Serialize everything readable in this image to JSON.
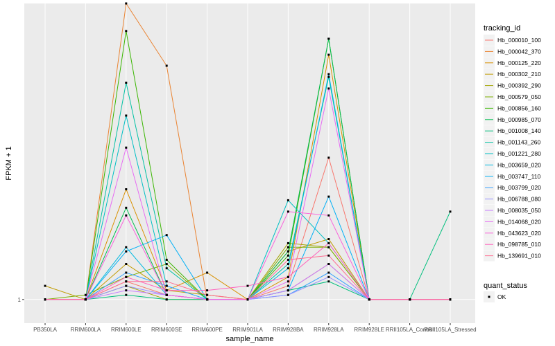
{
  "chart_data": {
    "type": "line",
    "title": "",
    "xlabel": "sample_name",
    "ylabel": "FPKM + 1",
    "categories": [
      "PB350LA",
      "RRIM600LA",
      "RRIM600LE",
      "RRIM600SE",
      "RRIM600PE",
      "RRIM901LA",
      "RRIM928BA",
      "RRIM928LA",
      "RRIM928LE",
      "RRII105LA_Control",
      "RRII105LA_Stressed"
    ],
    "y_tick_labels": [
      "1"
    ],
    "y_scale": "log",
    "ylim": [
      0.95,
      1.9
    ],
    "grid": true,
    "legend_position": "right",
    "legend_title": "tracking_id",
    "shape_legend": {
      "title": "quant_status",
      "entries": [
        "OK"
      ]
    },
    "series": [
      {
        "name": "Hb_000010_100",
        "color": "#F8766D",
        "values": [
          1,
          1,
          1.04,
          1.01,
          1,
          1,
          1.03,
          1.36,
          1,
          1,
          1
        ]
      },
      {
        "name": "Hb_000042_370",
        "color": "#EA8331",
        "values": [
          1,
          1,
          1.9,
          1.66,
          1,
          1,
          1.02,
          1.08,
          1,
          1,
          1
        ]
      },
      {
        "name": "Hb_000125_220",
        "color": "#D89000",
        "values": [
          1,
          1,
          1.27,
          1.02,
          1.06,
          1,
          1.05,
          1.7,
          1,
          1,
          1
        ]
      },
      {
        "name": "Hb_000302_210",
        "color": "#C09B00",
        "values": [
          1.03,
          1,
          1.08,
          1.02,
          1.01,
          1,
          1.11,
          1.14,
          1,
          1,
          1
        ]
      },
      {
        "name": "Hb_000392_290",
        "color": "#A3A500",
        "values": [
          1,
          1,
          1.03,
          1,
          1,
          1,
          1.13,
          1.12,
          1,
          1,
          1
        ]
      },
      {
        "name": "Hb_000579_050",
        "color": "#7CAE00",
        "values": [
          1,
          1.01,
          1.05,
          1.08,
          1,
          1,
          1.12,
          1.12,
          1,
          1,
          1
        ]
      },
      {
        "name": "Hb_000856_160",
        "color": "#39B600",
        "values": [
          1,
          1,
          1.79,
          1.09,
          1,
          1,
          1.1,
          1.76,
          1,
          1,
          1
        ]
      },
      {
        "name": "Hb_000985_070",
        "color": "#00BB4E",
        "values": [
          1,
          1,
          1.22,
          1.01,
          1,
          1,
          1.11,
          1.76,
          1,
          1,
          1
        ]
      },
      {
        "name": "Hb_001008_140",
        "color": "#00BF7D",
        "values": [
          1,
          1,
          1.01,
          1,
          1,
          1,
          1.02,
          1.04,
          1,
          1,
          1.21
        ]
      },
      {
        "name": "Hb_001143_260",
        "color": "#00C1A3",
        "values": [
          1,
          1,
          1.6,
          1.07,
          1,
          1,
          1.08,
          1.62,
          1,
          1,
          1
        ]
      },
      {
        "name": "Hb_001221_280",
        "color": "#00BFC4",
        "values": [
          1,
          1,
          1.49,
          1.03,
          1,
          1,
          1.24,
          1.13,
          1,
          1,
          1
        ]
      },
      {
        "name": "Hb_003659_020",
        "color": "#00BAE0",
        "values": [
          1,
          1,
          1.12,
          1.01,
          1,
          1,
          1.07,
          1.63,
          1,
          1,
          1
        ]
      },
      {
        "name": "Hb_003747_110",
        "color": "#00B0F6",
        "values": [
          1,
          1,
          1.11,
          1.15,
          1,
          1,
          1.02,
          1.25,
          1,
          1,
          1
        ]
      },
      {
        "name": "Hb_003799_020",
        "color": "#35A2FF",
        "values": [
          1,
          1,
          1.06,
          1.03,
          1,
          1,
          1.01,
          1.06,
          1,
          1,
          1
        ]
      },
      {
        "name": "Hb_006788_080",
        "color": "#9590FF",
        "values": [
          1,
          1,
          1.03,
          1.01,
          1,
          1,
          1.01,
          1.05,
          1,
          1,
          1
        ]
      },
      {
        "name": "Hb_008035_050",
        "color": "#C77CFF",
        "values": [
          1,
          1,
          1.02,
          1.01,
          1,
          1,
          1.02,
          1.08,
          1,
          1,
          1
        ]
      },
      {
        "name": "Hb_014068_020",
        "color": "#E76BF3",
        "values": [
          1,
          1,
          1.39,
          1.01,
          1,
          1,
          1.04,
          1.58,
          1,
          1,
          1
        ]
      },
      {
        "name": "Hb_043623_020",
        "color": "#FA62DB",
        "values": [
          1,
          1,
          1.2,
          1.01,
          1,
          1,
          1.21,
          1.2,
          1,
          1,
          1
        ]
      },
      {
        "name": "Hb_098785_010",
        "color": "#FF62BC",
        "values": [
          1,
          1,
          1.05,
          1.02,
          1.02,
          1.03,
          1.05,
          1.13,
          1,
          1,
          1
        ]
      },
      {
        "name": "Hb_139691_010",
        "color": "#FF6C91",
        "values": [
          1,
          1,
          1.04,
          1.04,
          1.01,
          1,
          1.09,
          1.1,
          1,
          1,
          1
        ]
      }
    ]
  }
}
